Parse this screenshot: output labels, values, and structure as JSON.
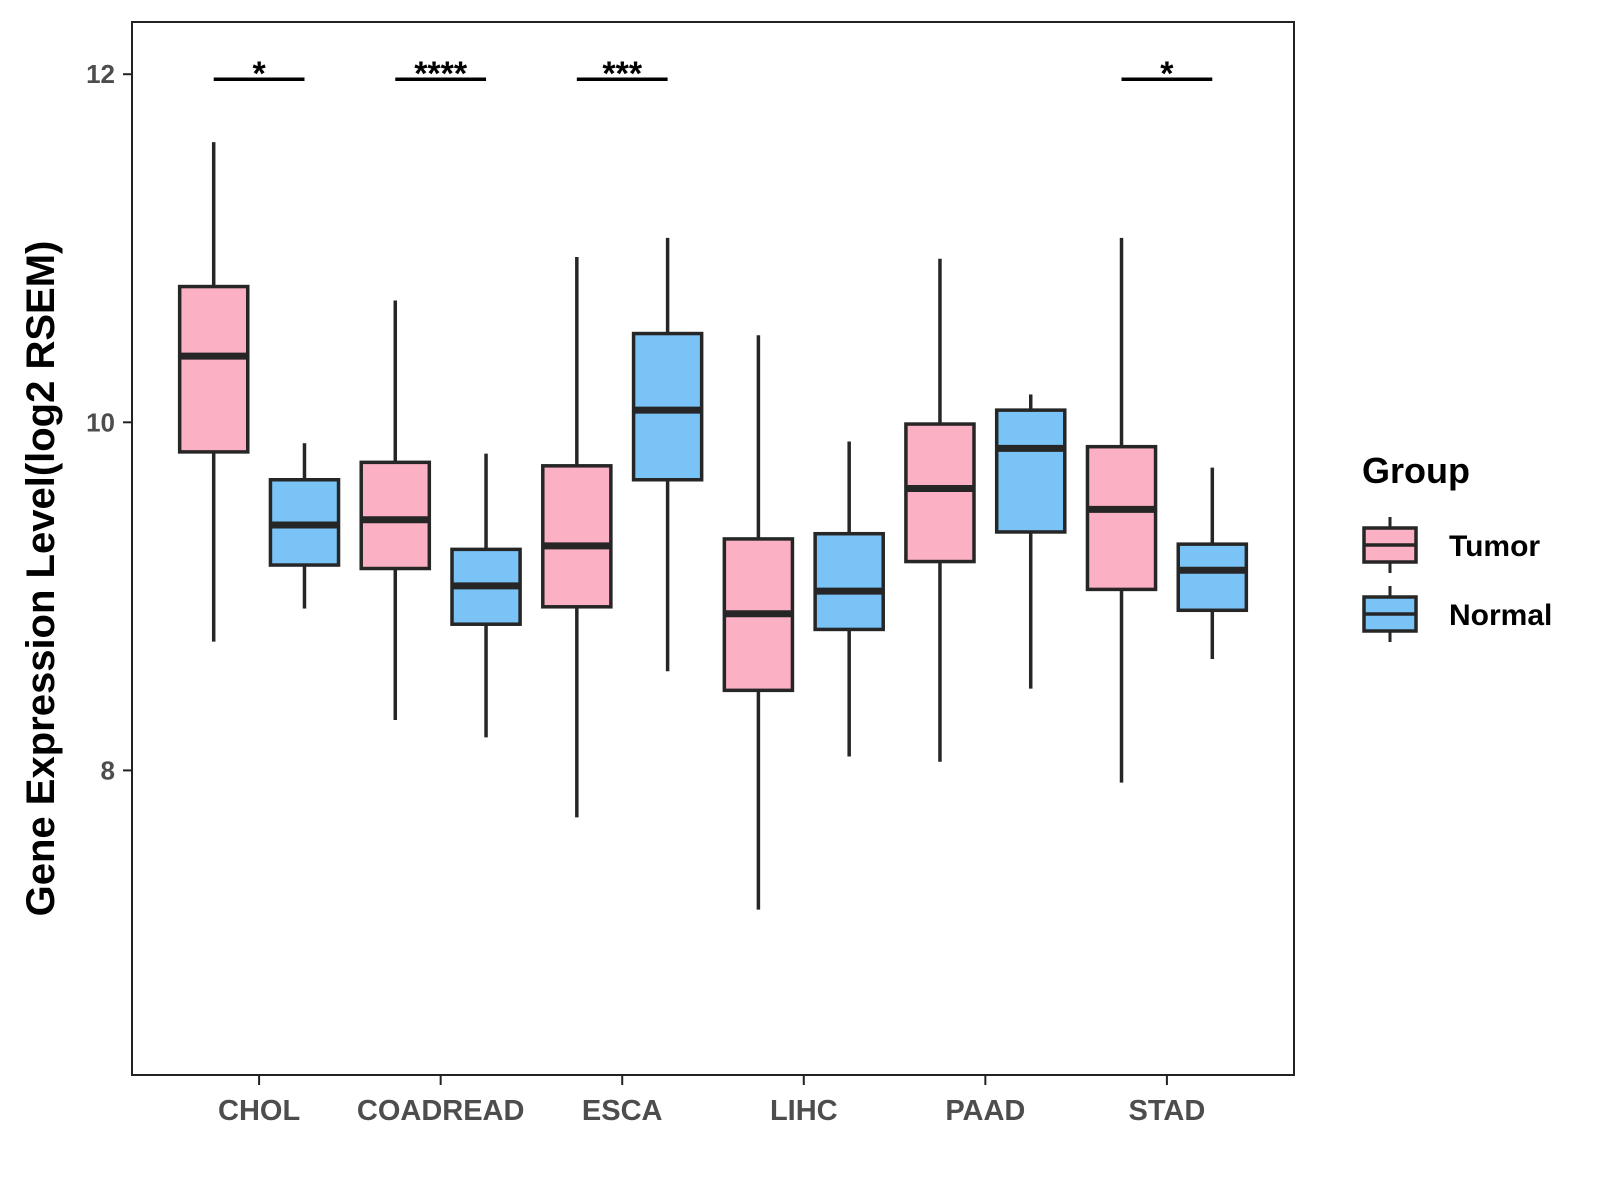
{
  "chart_data": {
    "type": "boxplot",
    "title": "",
    "xlabel": "",
    "ylabel": "Gene Expression Level(log2 RSEM)",
    "ylim": [
      6.25,
      12.3
    ],
    "yticks": [
      8,
      10,
      12
    ],
    "ytick_labels": [
      "8",
      "10",
      "12"
    ],
    "categories": [
      "CHOL",
      "COADREAD",
      "ESCA",
      "LIHC",
      "PAAD",
      "STAD"
    ],
    "legend": {
      "title": "Group",
      "position": "right",
      "entries": [
        {
          "label": "Tumor",
          "color": "#fbb0c3"
        },
        {
          "label": "Normal",
          "color": "#7ac3f7"
        }
      ]
    },
    "colors": {
      "Tumor": "#fbb0c3",
      "Normal": "#7ac3f7",
      "outline": "#262626"
    },
    "series": [
      {
        "name": "Tumor",
        "boxes": [
          {
            "category": "CHOL",
            "min": 8.74,
            "q1": 9.83,
            "median": 10.38,
            "q3": 10.78,
            "max": 11.61
          },
          {
            "category": "COADREAD",
            "min": 8.29,
            "q1": 9.16,
            "median": 9.44,
            "q3": 9.77,
            "max": 10.7
          },
          {
            "category": "ESCA",
            "min": 7.73,
            "q1": 8.94,
            "median": 9.29,
            "q3": 9.75,
            "max": 10.95
          },
          {
            "category": "LIHC",
            "min": 7.2,
            "q1": 8.46,
            "median": 8.9,
            "q3": 9.33,
            "max": 10.5
          },
          {
            "category": "PAAD",
            "min": 8.05,
            "q1": 9.2,
            "median": 9.62,
            "q3": 9.99,
            "max": 10.94
          },
          {
            "category": "STAD",
            "min": 7.93,
            "q1": 9.04,
            "median": 9.5,
            "q3": 9.86,
            "max": 11.06
          }
        ]
      },
      {
        "name": "Normal",
        "boxes": [
          {
            "category": "CHOL",
            "min": 8.93,
            "q1": 9.18,
            "median": 9.41,
            "q3": 9.67,
            "max": 9.88
          },
          {
            "category": "COADREAD",
            "min": 8.19,
            "q1": 8.84,
            "median": 9.06,
            "q3": 9.27,
            "max": 9.82
          },
          {
            "category": "ESCA",
            "min": 8.57,
            "q1": 9.67,
            "median": 10.07,
            "q3": 10.51,
            "max": 11.06
          },
          {
            "category": "LIHC",
            "min": 8.08,
            "q1": 8.81,
            "median": 9.03,
            "q3": 9.36,
            "max": 9.89
          },
          {
            "category": "PAAD",
            "min": 8.47,
            "q1": 9.37,
            "median": 9.85,
            "q3": 10.07,
            "max": 10.16
          },
          {
            "category": "STAD",
            "min": 8.64,
            "q1": 8.92,
            "median": 9.15,
            "q3": 9.3,
            "max": 9.74
          }
        ]
      }
    ],
    "significance": [
      {
        "category": "CHOL",
        "label": "*"
      },
      {
        "category": "COADREAD",
        "label": "****"
      },
      {
        "category": "ESCA",
        "label": "***"
      },
      {
        "category": "STAD",
        "label": "*"
      }
    ]
  }
}
